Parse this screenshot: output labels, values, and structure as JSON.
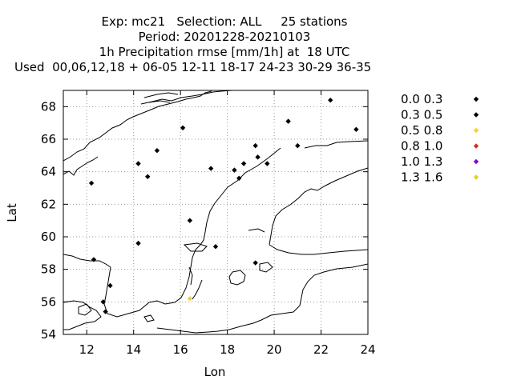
{
  "title": {
    "line1": "Exp: mc21   Selection: ALL     25 stations",
    "line2": "Period: 20201228-20210103",
    "line3": "1h Precipitation rmse [mm/1h] at  18 UTC",
    "line4": "Used  00,06,12,18 + 06-05 12-11 18-17 24-23 30-29 36-35"
  },
  "chart_data": {
    "type": "scatter",
    "xlabel": "Lon",
    "ylabel": "Lat",
    "xlim": [
      11,
      24
    ],
    "ylim": [
      54,
      69
    ],
    "xticks": [
      12,
      14,
      16,
      18,
      20,
      22,
      24
    ],
    "yticks": [
      54,
      56,
      58,
      60,
      62,
      64,
      66,
      68
    ],
    "grid": true,
    "legend_position": "right",
    "legend": [
      {
        "label": "0.0 0.3",
        "color": "#000000"
      },
      {
        "label": "0.3 0.5",
        "color": "#000000"
      },
      {
        "label": "0.5 0.8",
        "color": "#f0d040"
      },
      {
        "label": "0.8 1.0",
        "color": "#d03020"
      },
      {
        "label": "1.0 1.3",
        "color": "#8a00d0"
      },
      {
        "label": "1.3 1.6",
        "color": "#e8d020"
      }
    ],
    "points": [
      {
        "lon": 22.4,
        "lat": 68.4,
        "bin": 0
      },
      {
        "lon": 23.5,
        "lat": 66.6,
        "bin": 0
      },
      {
        "lon": 20.6,
        "lat": 67.1,
        "bin": 0
      },
      {
        "lon": 16.1,
        "lat": 66.7,
        "bin": 0
      },
      {
        "lon": 21.0,
        "lat": 65.6,
        "bin": 0
      },
      {
        "lon": 19.2,
        "lat": 65.6,
        "bin": 0
      },
      {
        "lon": 15.0,
        "lat": 65.3,
        "bin": 0
      },
      {
        "lon": 19.3,
        "lat": 64.9,
        "bin": 0
      },
      {
        "lon": 19.7,
        "lat": 64.5,
        "bin": 0
      },
      {
        "lon": 18.7,
        "lat": 64.5,
        "bin": 0
      },
      {
        "lon": 14.2,
        "lat": 64.5,
        "bin": 0
      },
      {
        "lon": 17.3,
        "lat": 64.2,
        "bin": 0
      },
      {
        "lon": 18.3,
        "lat": 64.1,
        "bin": 0
      },
      {
        "lon": 18.5,
        "lat": 63.6,
        "bin": 0
      },
      {
        "lon": 14.6,
        "lat": 63.7,
        "bin": 0
      },
      {
        "lon": 12.2,
        "lat": 63.3,
        "bin": 0
      },
      {
        "lon": 16.4,
        "lat": 61.0,
        "bin": 0
      },
      {
        "lon": 14.2,
        "lat": 59.6,
        "bin": 0
      },
      {
        "lon": 17.5,
        "lat": 59.4,
        "bin": 0
      },
      {
        "lon": 12.3,
        "lat": 58.6,
        "bin": 0
      },
      {
        "lon": 19.2,
        "lat": 58.4,
        "bin": 0
      },
      {
        "lon": 13.0,
        "lat": 57.0,
        "bin": 0
      },
      {
        "lon": 12.7,
        "lat": 56.0,
        "bin": 0
      },
      {
        "lon": 12.8,
        "lat": 55.4,
        "bin": 0
      },
      {
        "lon": 16.4,
        "lat": 56.2,
        "bin": 2
      }
    ]
  }
}
